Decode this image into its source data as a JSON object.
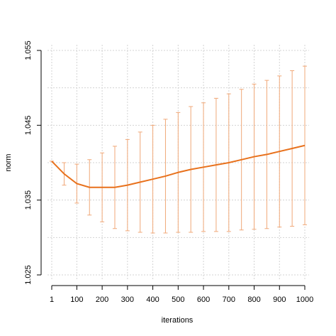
{
  "chart_data": {
    "type": "errorline",
    "x_label": "iterations",
    "y_label": "norm",
    "x": [
      1,
      50,
      100,
      150,
      200,
      250,
      300,
      350,
      400,
      450,
      500,
      550,
      600,
      650,
      700,
      750,
      800,
      850,
      900,
      950,
      1000
    ],
    "series": [
      {
        "color": "#e8711c",
        "error_color": "#f0a878",
        "values": [
          1.0402,
          1.0385,
          1.0372,
          1.0367,
          1.0367,
          1.0367,
          1.037,
          1.0374,
          1.0378,
          1.0382,
          1.0387,
          1.0391,
          1.0394,
          1.0397,
          1.04,
          1.0404,
          1.0408,
          1.0411,
          1.0415,
          1.0419,
          1.0423
        ],
        "errors": [
          0,
          0.0015,
          0.0026,
          0.0037,
          0.0046,
          0.0055,
          0.0061,
          0.0067,
          0.0072,
          0.0076,
          0.008,
          0.0084,
          0.0086,
          0.0089,
          0.0092,
          0.0094,
          0.0097,
          0.0099,
          0.0101,
          0.0104,
          0.0106
        ]
      }
    ],
    "xlim": [
      1,
      1000
    ],
    "ylim": [
      1.025,
      1.055
    ],
    "xticks": [
      1,
      100,
      200,
      300,
      400,
      500,
      600,
      700,
      800,
      900,
      1000
    ],
    "yticks": [
      1.025,
      1.035,
      1.045,
      1.055
    ],
    "minor_yticks": [
      1.03,
      1.04,
      1.05
    ],
    "grid": true
  }
}
